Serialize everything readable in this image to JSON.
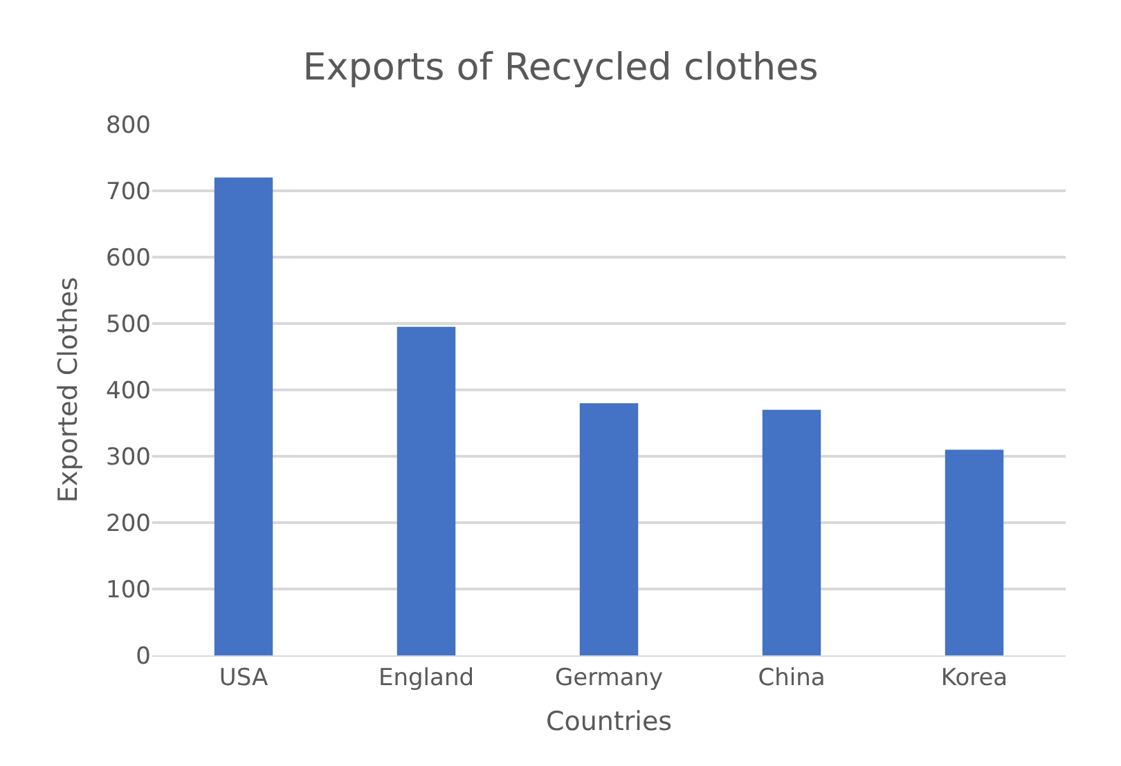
{
  "chart_data": {
    "type": "bar",
    "title": "Exports of Recycled clothes",
    "xlabel": "Countries",
    "ylabel": "Exported Clothes",
    "categories": [
      "USA",
      "England",
      "Germany",
      "China",
      "Korea"
    ],
    "values": [
      720,
      495,
      380,
      370,
      310
    ],
    "color": "#4472c4",
    "ylim": [
      0,
      800
    ],
    "yticks": [
      0,
      100,
      200,
      300,
      400,
      500,
      600,
      700,
      800
    ],
    "grid": "y"
  }
}
